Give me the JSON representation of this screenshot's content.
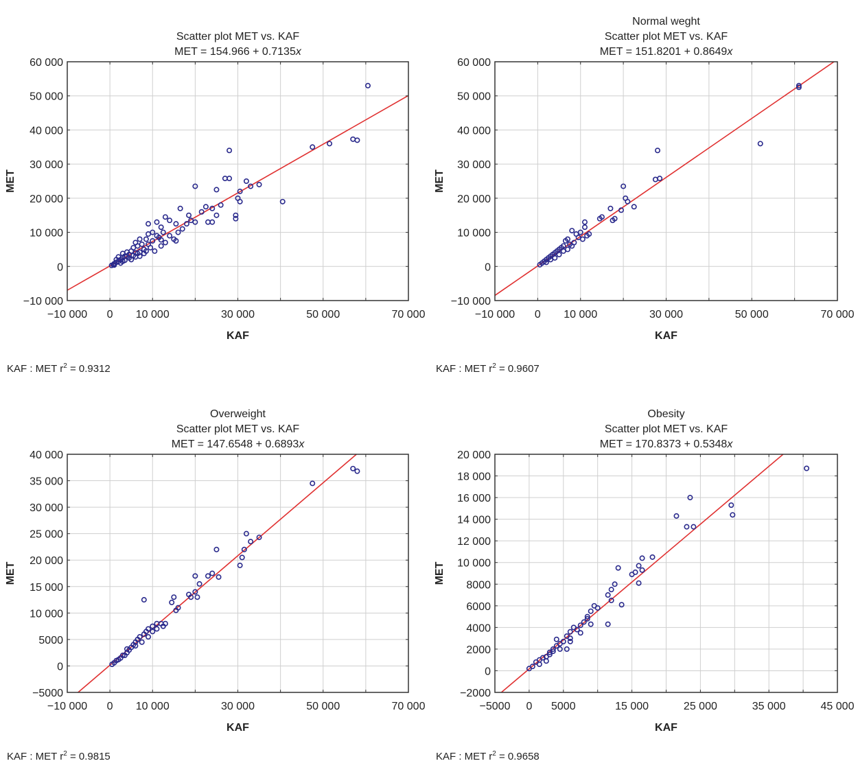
{
  "colors": {
    "point": "#2a2a8c",
    "fit_line": "#e03030",
    "grid": "#cfcfcf",
    "frame": "#333333"
  },
  "chart_data": [
    {
      "type": "scatter",
      "title_lines": [
        "Scatter plot MET vs. KAF",
        "MET = 154.966 + 0.7135x"
      ],
      "xlabel": "KAF",
      "ylabel": "MET",
      "xlim": [
        -10000,
        70000
      ],
      "ylim": [
        -10000,
        60000
      ],
      "x_ticks": [
        -10000,
        0,
        10000,
        30000,
        50000,
        70000
      ],
      "x_tick_labels": [
        "−10 000",
        "0",
        "10 000",
        "30 000",
        "50 000",
        "70 000"
      ],
      "x_grid": [
        -10000,
        0,
        10000,
        20000,
        30000,
        40000,
        50000,
        60000,
        70000
      ],
      "y_ticks": [
        -10000,
        0,
        10000,
        20000,
        30000,
        40000,
        50000,
        60000
      ],
      "y_tick_labels": [
        "−10 000",
        "0",
        "10 000",
        "20 000",
        "30 000",
        "40 000",
        "50 000",
        "60 000"
      ],
      "fit": {
        "intercept": 154.966,
        "slope": 0.7135
      },
      "r_squared_text": "KAF : MET r",
      "r_squared_value": "= 0.9312",
      "points": [
        [
          60500,
          53000
        ],
        [
          47500,
          35000
        ],
        [
          51500,
          36000
        ],
        [
          57000,
          37300
        ],
        [
          58000,
          37000
        ],
        [
          28000,
          34000
        ],
        [
          27000,
          25800
        ],
        [
          28000,
          25800
        ],
        [
          32000,
          25000
        ],
        [
          35000,
          24000
        ],
        [
          33000,
          23500
        ],
        [
          25000,
          22500
        ],
        [
          30500,
          22000
        ],
        [
          20000,
          23500
        ],
        [
          40500,
          19000
        ],
        [
          30000,
          20000
        ],
        [
          30500,
          19000
        ],
        [
          29500,
          15000
        ],
        [
          29500,
          14000
        ],
        [
          26000,
          18000
        ],
        [
          24000,
          17000
        ],
        [
          22500,
          17500
        ],
        [
          21500,
          16000
        ],
        [
          16500,
          17000
        ],
        [
          18500,
          15000
        ],
        [
          13000,
          14500
        ],
        [
          14000,
          13500
        ],
        [
          15500,
          12500
        ],
        [
          20000,
          13000
        ],
        [
          23000,
          13000
        ],
        [
          24000,
          13000
        ],
        [
          25000,
          15000
        ],
        [
          9000,
          12500
        ],
        [
          11000,
          13000
        ],
        [
          12000,
          11500
        ],
        [
          10000,
          10000
        ],
        [
          12500,
          10000
        ],
        [
          14000,
          9000
        ],
        [
          15000,
          8000
        ],
        [
          15500,
          7500
        ],
        [
          11500,
          8500
        ],
        [
          12000,
          6000
        ],
        [
          10500,
          4500
        ],
        [
          13000,
          7000
        ],
        [
          8500,
          8000
        ],
        [
          9000,
          6500
        ],
        [
          7000,
          8000
        ],
        [
          6000,
          7000
        ],
        [
          5500,
          5500
        ],
        [
          6500,
          6000
        ],
        [
          5000,
          4500
        ],
        [
          4500,
          3500
        ],
        [
          3500,
          3000
        ],
        [
          3000,
          2500
        ],
        [
          2500,
          2000
        ],
        [
          2000,
          1500
        ],
        [
          1500,
          1200
        ],
        [
          1000,
          800
        ],
        [
          800,
          500
        ],
        [
          400,
          300
        ],
        [
          6000,
          4000
        ],
        [
          7000,
          4200
        ],
        [
          8000,
          5000
        ],
        [
          9500,
          5500
        ],
        [
          7500,
          6500
        ],
        [
          4000,
          4200
        ],
        [
          3000,
          3800
        ],
        [
          2000,
          2800
        ],
        [
          4500,
          2500
        ],
        [
          5500,
          3200
        ],
        [
          6500,
          3800
        ],
        [
          3500,
          1800
        ],
        [
          2500,
          1000
        ],
        [
          1500,
          2000
        ],
        [
          10000,
          7500
        ],
        [
          11000,
          9000
        ],
        [
          9000,
          9500
        ],
        [
          17000,
          11000
        ],
        [
          18000,
          12500
        ],
        [
          19000,
          13500
        ],
        [
          16000,
          10000
        ],
        [
          8000,
          3800
        ],
        [
          6000,
          2800
        ],
        [
          3000,
          1500
        ],
        [
          1000,
          400
        ],
        [
          4000,
          3000
        ],
        [
          5000,
          2000
        ],
        [
          7000,
          3000
        ],
        [
          8500,
          4500
        ],
        [
          12000,
          7800
        ]
      ]
    },
    {
      "type": "scatter",
      "title_lines": [
        "Normal weght",
        "Scatter plot MET vs. KAF",
        "MET = 151.8201 + 0.8649x"
      ],
      "xlabel": "KAF",
      "ylabel": "MET",
      "xlim": [
        -10000,
        70000
      ],
      "ylim": [
        -10000,
        60000
      ],
      "x_ticks": [
        -10000,
        0,
        10000,
        30000,
        50000,
        70000
      ],
      "x_tick_labels": [
        "−10 000",
        "0",
        "10 000",
        "30 000",
        "50 000",
        "70 000"
      ],
      "x_grid": [
        -10000,
        0,
        10000,
        20000,
        30000,
        40000,
        50000,
        60000,
        70000
      ],
      "y_ticks": [
        -10000,
        0,
        10000,
        20000,
        30000,
        40000,
        50000,
        60000
      ],
      "y_tick_labels": [
        "−10 000",
        "0",
        "10 000",
        "20 000",
        "30 000",
        "40 000",
        "50 000",
        "60 000"
      ],
      "fit": {
        "intercept": 151.8201,
        "slope": 0.8649
      },
      "r_squared_text": "KAF : MET r",
      "r_squared_value": "= 0.9607",
      "points": [
        [
          61000,
          53000
        ],
        [
          61000,
          52500
        ],
        [
          52000,
          36000
        ],
        [
          28000,
          34000
        ],
        [
          27500,
          25500
        ],
        [
          28500,
          25800
        ],
        [
          20000,
          23500
        ],
        [
          20500,
          20000
        ],
        [
          22500,
          17500
        ],
        [
          21000,
          19000
        ],
        [
          19500,
          16500
        ],
        [
          17000,
          17000
        ],
        [
          18000,
          14000
        ],
        [
          17500,
          13500
        ],
        [
          15000,
          14500
        ],
        [
          14500,
          14000
        ],
        [
          11000,
          13000
        ],
        [
          11000,
          11500
        ],
        [
          10000,
          10000
        ],
        [
          9000,
          9500
        ],
        [
          8000,
          10500
        ],
        [
          9500,
          8500
        ],
        [
          11500,
          9000
        ],
        [
          7000,
          8000
        ],
        [
          6500,
          7500
        ],
        [
          6000,
          6000
        ],
        [
          7500,
          6500
        ],
        [
          8500,
          7000
        ],
        [
          5500,
          5500
        ],
        [
          5000,
          5000
        ],
        [
          4000,
          4000
        ],
        [
          3500,
          3500
        ],
        [
          3000,
          3000
        ],
        [
          2500,
          2500
        ],
        [
          2000,
          2000
        ],
        [
          1500,
          1500
        ],
        [
          1000,
          1000
        ],
        [
          500,
          500
        ],
        [
          4500,
          4500
        ],
        [
          6000,
          4500
        ],
        [
          7000,
          5000
        ],
        [
          3000,
          2000
        ],
        [
          2000,
          1200
        ],
        [
          8000,
          6000
        ],
        [
          10500,
          8000
        ],
        [
          12000,
          9500
        ],
        [
          5000,
          3500
        ],
        [
          4000,
          2500
        ]
      ]
    },
    {
      "type": "scatter",
      "title_lines": [
        "Overweight",
        "Scatter plot MET vs. KAF",
        "MET = 147.6548 + 0.6893x"
      ],
      "xlabel": "KAF",
      "ylabel": "MET",
      "xlim": [
        -10000,
        70000
      ],
      "ylim": [
        -5000,
        40000
      ],
      "x_ticks": [
        -10000,
        0,
        10000,
        30000,
        50000,
        70000
      ],
      "x_tick_labels": [
        "−10 000",
        "0",
        "10 000",
        "30 000",
        "50 000",
        "70 000"
      ],
      "x_grid": [
        -10000,
        0,
        10000,
        20000,
        30000,
        40000,
        50000,
        60000,
        70000
      ],
      "y_ticks": [
        -5000,
        0,
        5000,
        10000,
        15000,
        20000,
        25000,
        30000,
        35000,
        40000
      ],
      "y_tick_labels": [
        "−5000",
        "0",
        "5000",
        "10 000",
        "15 000",
        "20 000",
        "25 000",
        "30 000",
        "35 000",
        "40 000"
      ],
      "fit": {
        "intercept": 147.6548,
        "slope": 0.6893
      },
      "r_squared_text": "KAF : MET r",
      "r_squared_value": "= 0.9815",
      "points": [
        [
          47500,
          34500
        ],
        [
          57000,
          37300
        ],
        [
          58000,
          36800
        ],
        [
          32000,
          25000
        ],
        [
          35000,
          24300
        ],
        [
          33000,
          23500
        ],
        [
          31500,
          22000
        ],
        [
          25000,
          22000
        ],
        [
          31000,
          20500
        ],
        [
          30500,
          19000
        ],
        [
          20000,
          17000
        ],
        [
          24000,
          17500
        ],
        [
          23000,
          17000
        ],
        [
          25500,
          16800
        ],
        [
          21000,
          15500
        ],
        [
          20000,
          14000
        ],
        [
          20500,
          13000
        ],
        [
          18500,
          13500
        ],
        [
          19000,
          13000
        ],
        [
          15000,
          13000
        ],
        [
          14500,
          12000
        ],
        [
          16000,
          11000
        ],
        [
          15500,
          10500
        ],
        [
          8000,
          12500
        ],
        [
          12000,
          8000
        ],
        [
          13000,
          8000
        ],
        [
          12500,
          7500
        ],
        [
          11000,
          8000
        ],
        [
          10000,
          7500
        ],
        [
          9000,
          7000
        ],
        [
          8500,
          6500
        ],
        [
          8000,
          6000
        ],
        [
          7000,
          5500
        ],
        [
          6500,
          5000
        ],
        [
          6000,
          4500
        ],
        [
          5500,
          4000
        ],
        [
          5000,
          3500
        ],
        [
          4500,
          3000
        ],
        [
          4000,
          2500
        ],
        [
          3500,
          2000
        ],
        [
          3000,
          2000
        ],
        [
          2500,
          1500
        ],
        [
          2000,
          1200
        ],
        [
          1500,
          1000
        ],
        [
          1000,
          600
        ],
        [
          500,
          300
        ],
        [
          9000,
          5500
        ],
        [
          7500,
          4500
        ],
        [
          10000,
          6500
        ],
        [
          11000,
          7000
        ],
        [
          6000,
          3800
        ],
        [
          4000,
          3200
        ]
      ]
    },
    {
      "type": "scatter",
      "title_lines": [
        "Obesity",
        "Scatter plot MET vs. KAF",
        "MET = 170.8373 + 0.5348x"
      ],
      "xlabel": "KAF",
      "ylabel": "MET",
      "xlim": [
        -5000,
        45000
      ],
      "ylim": [
        -2000,
        20000
      ],
      "x_ticks": [
        -5000,
        0,
        5000,
        15000,
        25000,
        35000,
        45000
      ],
      "x_tick_labels": [
        "−5000",
        "0",
        "5000",
        "15 000",
        "25 000",
        "35 000",
        "45 000"
      ],
      "x_grid": [
        -5000,
        0,
        5000,
        10000,
        15000,
        20000,
        25000,
        30000,
        35000,
        40000,
        45000
      ],
      "y_ticks": [
        -2000,
        0,
        2000,
        4000,
        6000,
        8000,
        10000,
        12000,
        14000,
        16000,
        18000,
        20000
      ],
      "y_tick_labels": [
        "−2000",
        "0",
        "2000",
        "4000",
        "6000",
        "8000",
        "10 000",
        "12 000",
        "14 000",
        "16 000",
        "18 000",
        "20 000"
      ],
      "fit": {
        "intercept": 170.8373,
        "slope": 0.5348
      },
      "r_squared_text": "KAF : MET r",
      "r_squared_value": "= 0.9658",
      "points": [
        [
          40500,
          18700
        ],
        [
          23500,
          16000
        ],
        [
          29500,
          15300
        ],
        [
          29700,
          14400
        ],
        [
          21500,
          14300
        ],
        [
          23000,
          13300
        ],
        [
          24000,
          13300
        ],
        [
          18000,
          10500
        ],
        [
          16500,
          10400
        ],
        [
          16000,
          9700
        ],
        [
          15500,
          9100
        ],
        [
          16500,
          9300
        ],
        [
          15000,
          8900
        ],
        [
          16000,
          8100
        ],
        [
          13000,
          9500
        ],
        [
          12500,
          8000
        ],
        [
          12000,
          7500
        ],
        [
          11500,
          7000
        ],
        [
          12000,
          6500
        ],
        [
          13500,
          6100
        ],
        [
          11500,
          4300
        ],
        [
          9500,
          6000
        ],
        [
          9000,
          5500
        ],
        [
          8500,
          5000
        ],
        [
          8000,
          4500
        ],
        [
          9000,
          4300
        ],
        [
          7500,
          4200
        ],
        [
          7000,
          3800
        ],
        [
          7500,
          3500
        ],
        [
          6500,
          4000
        ],
        [
          6000,
          3600
        ],
        [
          5500,
          3200
        ],
        [
          6000,
          3000
        ],
        [
          6000,
          2700
        ],
        [
          5000,
          2700
        ],
        [
          4500,
          2500
        ],
        [
          4500,
          2000
        ],
        [
          4000,
          2300
        ],
        [
          3500,
          2000
        ],
        [
          3500,
          1800
        ],
        [
          3000,
          1700
        ],
        [
          3000,
          1500
        ],
        [
          2500,
          1300
        ],
        [
          2000,
          1200
        ],
        [
          1500,
          1000
        ],
        [
          1000,
          800
        ],
        [
          500,
          400
        ],
        [
          0,
          200
        ],
        [
          4000,
          2900
        ],
        [
          5500,
          2000
        ],
        [
          2500,
          900
        ],
        [
          1500,
          600
        ],
        [
          8500,
          4800
        ],
        [
          10000,
          5800
        ]
      ]
    }
  ]
}
